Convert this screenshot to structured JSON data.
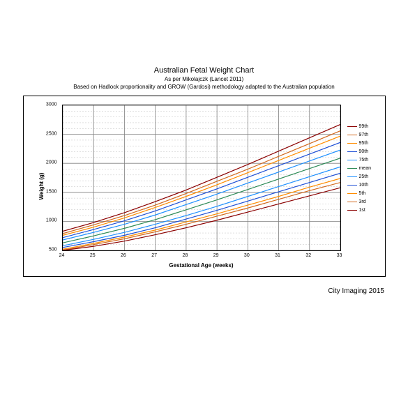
{
  "title": "Australian Fetal Weight Chart",
  "subtitle1": "As per Mikolajczk (Lancet 2011)",
  "subtitle2": "Based on Hadlock proportionality and GROW (Gardosi) methodology adapted to the Australian population",
  "footer": "City Imaging 2015",
  "chart": {
    "type": "line",
    "xlabel": "Gestational Age (weeks)",
    "ylabel": "Weight (g)",
    "xlim": [
      24,
      33
    ],
    "ylim": [
      500,
      3000
    ],
    "xtick_step": 1,
    "ytick_step": 500,
    "ytick_minor_step": 100,
    "background_color": "#ffffff",
    "grid_major_color": "#808080",
    "grid_minor_color": "#c0c0c0",
    "grid_minor_dash": "2,2",
    "border_color": "#000000",
    "series": [
      {
        "label": "99th",
        "color": "#8b0000",
        "y": [
          830,
          980,
          1150,
          1340,
          1540,
          1760,
          1980,
          2210,
          2440,
          2670
        ]
      },
      {
        "label": "97th",
        "color": "#d2691e",
        "y": [
          790,
          940,
          1100,
          1280,
          1480,
          1690,
          1900,
          2120,
          2340,
          2560
        ]
      },
      {
        "label": "95th",
        "color": "#ff8c00",
        "y": [
          760,
          900,
          1060,
          1240,
          1430,
          1630,
          1840,
          2050,
          2260,
          2470
        ]
      },
      {
        "label": "90th",
        "color": "#1e4fd6",
        "y": [
          720,
          860,
          1010,
          1180,
          1370,
          1560,
          1760,
          1960,
          2160,
          2360
        ]
      },
      {
        "label": "75th",
        "color": "#1e90ff",
        "y": [
          680,
          810,
          950,
          1110,
          1290,
          1470,
          1660,
          1850,
          2040,
          2230
        ]
      },
      {
        "label": "mean",
        "color": "#2e8b57",
        "y": [
          630,
          750,
          880,
          1030,
          1200,
          1370,
          1550,
          1730,
          1910,
          2090
        ]
      },
      {
        "label": "25th",
        "color": "#1e90ff",
        "y": [
          580,
          690,
          810,
          950,
          1100,
          1260,
          1430,
          1600,
          1770,
          1940
        ]
      },
      {
        "label": "10th",
        "color": "#1e4fd6",
        "y": [
          550,
          650,
          760,
          890,
          1040,
          1190,
          1350,
          1510,
          1670,
          1830
        ]
      },
      {
        "label": "5th",
        "color": "#ff8c00",
        "y": [
          520,
          620,
          730,
          850,
          990,
          1130,
          1280,
          1430,
          1590,
          1740
        ]
      },
      {
        "label": "3rd",
        "color": "#d2691e",
        "y": [
          505,
          600,
          700,
          820,
          950,
          1090,
          1230,
          1380,
          1530,
          1670
        ]
      },
      {
        "label": "1st",
        "color": "#8b0000",
        "y": [
          500,
          570,
          660,
          770,
          890,
          1020,
          1160,
          1300,
          1440,
          1580
        ]
      }
    ],
    "xticks": [
      24,
      25,
      26,
      27,
      28,
      29,
      30,
      31,
      32,
      33
    ],
    "yticks": [
      500,
      1000,
      1500,
      2000,
      2500,
      3000
    ]
  }
}
